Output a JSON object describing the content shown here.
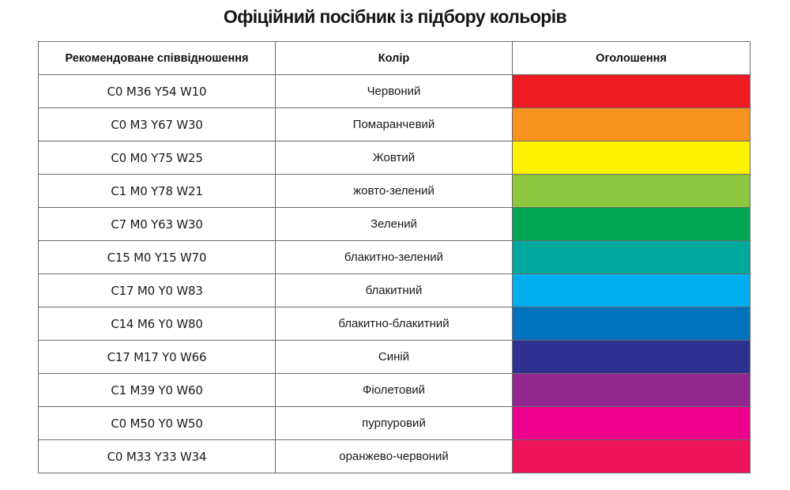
{
  "title": "Офіційний посібник із підбору кольорів",
  "table": {
    "headers": [
      "Рекомендоване співвідношення",
      "Колір",
      "Оголошення"
    ],
    "rows": [
      {
        "ratio": "C0 M36 Y54 W10",
        "color_name": "Червоний",
        "swatch": "#ed1c24"
      },
      {
        "ratio": "C0 M3 Y67 W30",
        "color_name": "Помаранчевий",
        "swatch": "#f7931e"
      },
      {
        "ratio": "C0 M0 Y75 W25",
        "color_name": "Жовтий",
        "swatch": "#fff200"
      },
      {
        "ratio": "C1 M0 Y78 W21",
        "color_name": "жовто-зелений",
        "swatch": "#8dc63f"
      },
      {
        "ratio": "C7 M0 Y63 W30",
        "color_name": "Зелений",
        "swatch": "#00a651"
      },
      {
        "ratio": "C15 M0 Y15 W70",
        "color_name": "блакитно-зелений",
        "swatch": "#00a99d"
      },
      {
        "ratio": "C17 M0 Y0 W83",
        "color_name": "блакитний",
        "swatch": "#00aeef"
      },
      {
        "ratio": "C14 M6 Y0 W80",
        "color_name": "блакитно-блакитний",
        "swatch": "#0072bc"
      },
      {
        "ratio": "C17 M17 Y0 W66",
        "color_name": "Синій",
        "swatch": "#2e3192"
      },
      {
        "ratio": "C1 M39 Y0 W60",
        "color_name": "Фіолетовий",
        "swatch": "#92278f"
      },
      {
        "ratio": "C0 M50 Y0 W50",
        "color_name": "пурпуровий",
        "swatch": "#ec008c"
      },
      {
        "ratio": "C0 M33 Y33 W34",
        "color_name": "оранжево-червоний",
        "swatch": "#ed145b"
      }
    ]
  }
}
